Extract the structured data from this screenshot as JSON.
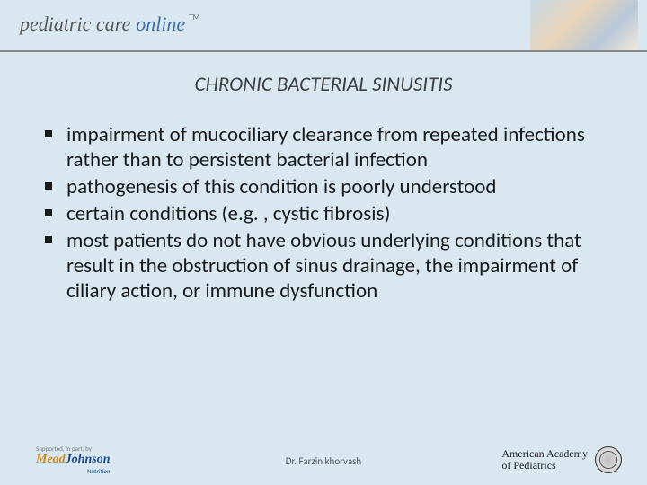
{
  "header": {
    "brand_part1": "pediatric care",
    "brand_part2": "online",
    "tm": "TM"
  },
  "title": "CHRONIC BACTERIAL SINUSITIS",
  "bullets": [
    "impairment of mucociliary clearance from repeated infections rather than to persistent bacterial infection",
    " pathogenesis of this condition is poorly understood",
    "certain conditions (e.g. , cystic fibrosis)",
    "most patients do not have obvious underlying conditions that result in the obstruction of sinus drainage, the impairment of ciliary action, or immune dysfunction"
  ],
  "footer": {
    "sponsor_label": "Supported, in part, by",
    "sponsor_mead": "Mead",
    "sponsor_johnson": "Johnson",
    "sponsor_sub": "Nutrition",
    "center": "Dr. Farzin khorvash",
    "aap_line1": "American Academy",
    "aap_line2": "of Pediatrics"
  }
}
